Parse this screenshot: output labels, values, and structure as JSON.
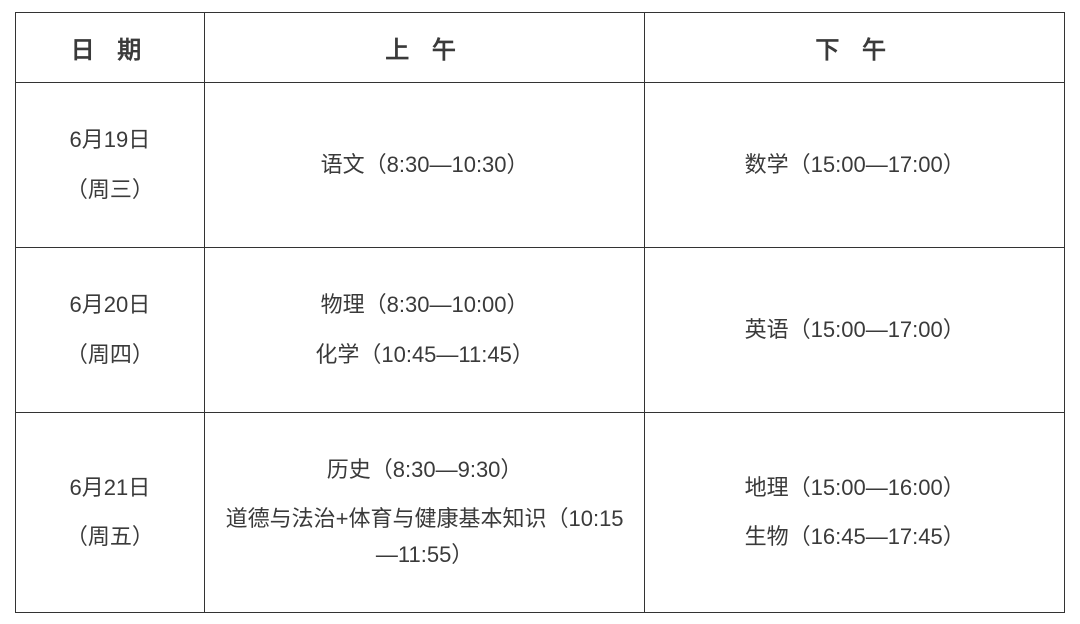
{
  "table": {
    "type": "table",
    "columns": [
      "日 期",
      "上 午",
      "下 午"
    ],
    "column_widths": [
      "18%",
      "42%",
      "40%"
    ],
    "header_fontsize": 24,
    "header_fontweight": "bold",
    "cell_fontsize": 22,
    "border_color": "#333333",
    "text_color": "#3a3a3a",
    "background_color": "#ffffff",
    "rows": [
      {
        "date": "6月19日",
        "weekday": "（周三）",
        "morning": [
          "语文（8:30—10:30）"
        ],
        "afternoon": [
          "数学（15:00—17:00）"
        ]
      },
      {
        "date": "6月20日",
        "weekday": "（周四）",
        "morning": [
          "物理（8:30—10:00）",
          "化学（10:45—11:45）"
        ],
        "afternoon": [
          "英语（15:00—17:00）"
        ]
      },
      {
        "date": "6月21日",
        "weekday": "（周五）",
        "morning": [
          "历史（8:30—9:30）",
          "道德与法治+体育与健康基本知识（10:15—11:55）"
        ],
        "afternoon": [
          "地理（15:00—16:00）",
          "生物（16:45—17:45）"
        ]
      }
    ]
  }
}
